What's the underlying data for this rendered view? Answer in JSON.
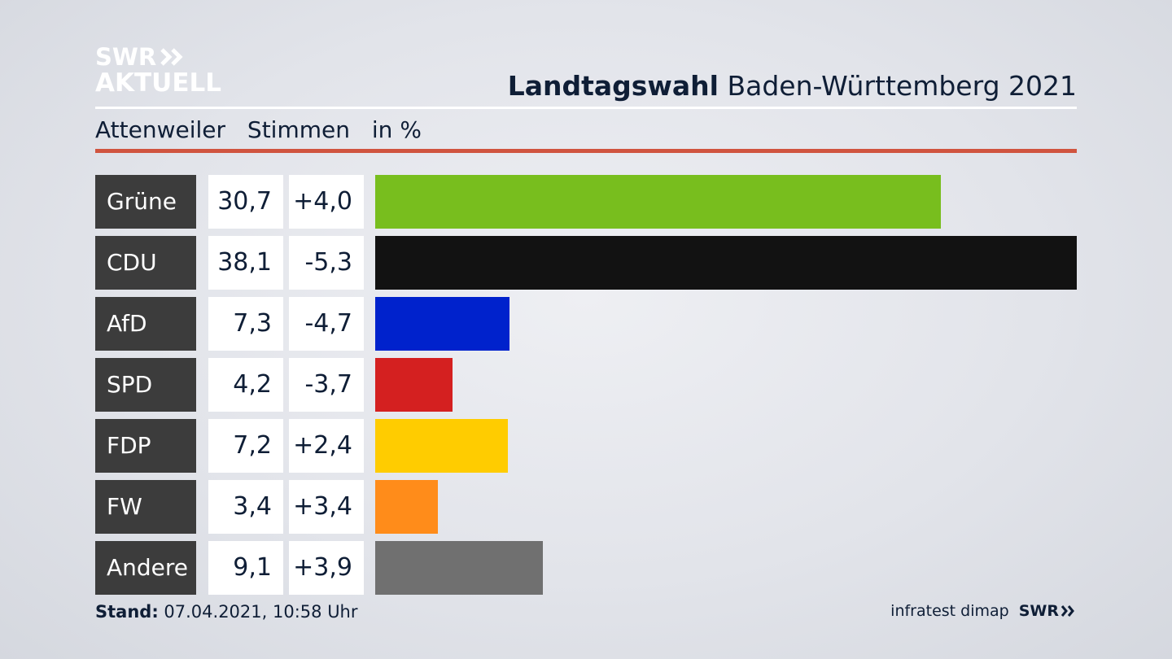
{
  "logo": {
    "line1": "SWR",
    "line2": "AKTUELL"
  },
  "header": {
    "title_bold": "Landtagswahl",
    "title_rest": "Baden-Württemberg 2021"
  },
  "subheader": {
    "place": "Attenweiler",
    "measure": "Stimmen",
    "unit": "in %"
  },
  "colors": {
    "accent_rule": "#d0543f",
    "label_bg": "#3c3c3c"
  },
  "chart_data": {
    "type": "bar",
    "orientation": "horizontal",
    "categories": [
      "Grüne",
      "CDU",
      "AfD",
      "SPD",
      "FDP",
      "FW",
      "Andere"
    ],
    "values": [
      30.7,
      38.1,
      7.3,
      4.2,
      7.2,
      3.4,
      9.1
    ],
    "value_labels": [
      "30,7",
      "38,1",
      "7,3",
      "4,2",
      "7,2",
      "3,4",
      "9,1"
    ],
    "changes": [
      4.0,
      -5.3,
      -4.7,
      -3.7,
      2.4,
      3.4,
      3.9
    ],
    "change_labels": [
      "+4,0",
      "-5,3",
      "-4,7",
      "-3,7",
      "+2,4",
      "+3,4",
      "+3,9"
    ],
    "colors": [
      "#78be1e",
      "#121212",
      "#0022cc",
      "#d42020",
      "#ffcc00",
      "#ff8c1a",
      "#707070"
    ],
    "title": "Landtagswahl Baden-Württemberg 2021",
    "xlim": [
      0,
      38.1
    ]
  },
  "footer": {
    "stand_label": "Stand:",
    "stand_value": "07.04.2021, 10:58 Uhr",
    "source": "infratest dimap",
    "brand": "SWR"
  }
}
